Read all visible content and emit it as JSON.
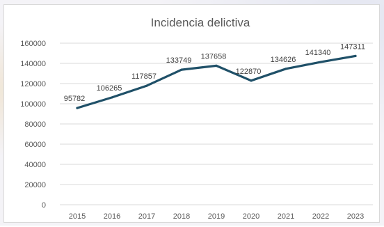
{
  "chart_data": {
    "type": "line",
    "title": "Incidencia delictiva",
    "xlabel": "",
    "ylabel": "",
    "categories": [
      "2015",
      "2016",
      "2017",
      "2018",
      "2019",
      "2020",
      "2021",
      "2022",
      "2023"
    ],
    "series": [
      {
        "values": [
          95782,
          106265,
          117857,
          133749,
          137658,
          122870,
          134626,
          141340,
          147311
        ]
      }
    ],
    "y_ticks": [
      "0",
      "20000",
      "40000",
      "60000",
      "80000",
      "100000",
      "120000",
      "140000",
      "160000"
    ],
    "ylim": [
      0,
      160000
    ],
    "grid": "horizontal",
    "legend": "none",
    "data_labels": true,
    "colors": {
      "line": "#1f5068",
      "grid": "#d9d9d9",
      "title": "#595959",
      "axis_text": "#595959",
      "label": "#404040"
    }
  }
}
